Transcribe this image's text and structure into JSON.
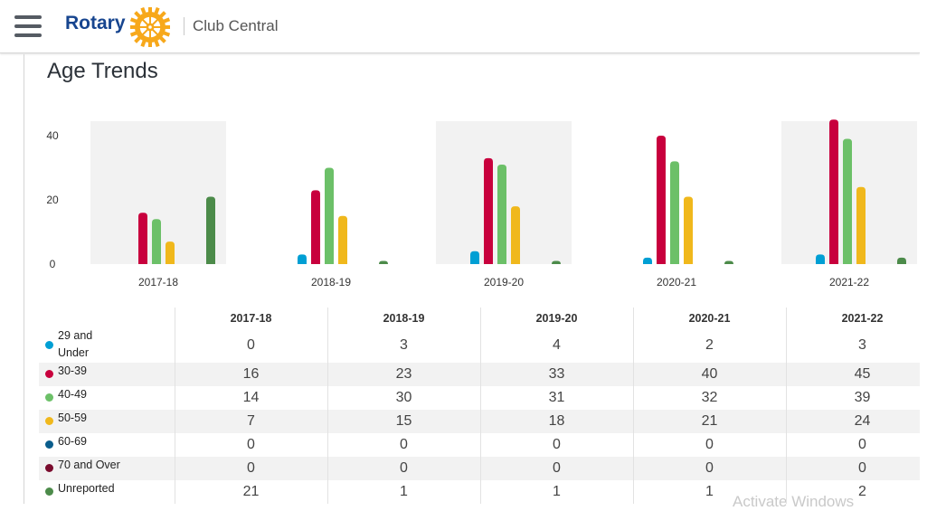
{
  "header": {
    "brand": "Rotary",
    "app_name": "Club Central",
    "menu_icon": "hamburger-menu-icon",
    "logo_icon": "rotary-wheel-icon",
    "colors": {
      "brand_blue": "#17458f",
      "wheel_gold": "#f7a81b"
    }
  },
  "page": {
    "title": "Age Trends"
  },
  "chart_data": {
    "type": "bar",
    "categories": [
      "2017-18",
      "2018-19",
      "2019-20",
      "2020-21",
      "2021-22"
    ],
    "y_ticks": [
      "0",
      "20",
      "40"
    ],
    "ylim": [
      0,
      45
    ],
    "grouping": "small multiples per year, alternating shaded panels",
    "series": [
      {
        "name": "29 and Under",
        "color": "#009fd4",
        "values": [
          0,
          3,
          4,
          2,
          3
        ]
      },
      {
        "name": "30-39",
        "color": "#c8003d",
        "values": [
          16,
          23,
          33,
          40,
          45
        ]
      },
      {
        "name": "40-49",
        "color": "#6cc068",
        "values": [
          14,
          30,
          31,
          32,
          39
        ]
      },
      {
        "name": "50-59",
        "color": "#f0b81c",
        "values": [
          7,
          15,
          18,
          21,
          24
        ]
      },
      {
        "name": "60-69",
        "color": "#0a5d8c",
        "values": [
          0,
          0,
          0,
          0,
          0
        ]
      },
      {
        "name": "70 and Over",
        "color": "#7a0c2e",
        "values": [
          0,
          0,
          0,
          0,
          0
        ]
      },
      {
        "name": "Unreported",
        "color": "#4c8b4a",
        "values": [
          21,
          1,
          1,
          1,
          2
        ]
      }
    ]
  },
  "table": {
    "headers": [
      "2017-18",
      "2018-19",
      "2019-20",
      "2020-21",
      "2021-22"
    ],
    "rows": [
      {
        "label": "29 and Under",
        "label_lines": [
          "29 and",
          "Under"
        ],
        "color": "#009fd4",
        "values": [
          "0",
          "3",
          "4",
          "2",
          "3"
        ]
      },
      {
        "label": "30-39",
        "label_lines": [
          "30-39"
        ],
        "color": "#c8003d",
        "values": [
          "16",
          "23",
          "33",
          "40",
          "45"
        ]
      },
      {
        "label": "40-49",
        "label_lines": [
          "40-49"
        ],
        "color": "#6cc068",
        "values": [
          "14",
          "30",
          "31",
          "32",
          "39"
        ]
      },
      {
        "label": "50-59",
        "label_lines": [
          "50-59"
        ],
        "color": "#f0b81c",
        "values": [
          "7",
          "15",
          "18",
          "21",
          "24"
        ]
      },
      {
        "label": "60-69",
        "label_lines": [
          "60-69"
        ],
        "color": "#0a5d8c",
        "values": [
          "0",
          "0",
          "0",
          "0",
          "0"
        ]
      },
      {
        "label": "70 and Over",
        "label_lines": [
          "70 and Over"
        ],
        "color": "#7a0c2e",
        "values": [
          "0",
          "0",
          "0",
          "0",
          "0"
        ]
      },
      {
        "label": "Unreported",
        "label_lines": [
          "Unreported"
        ],
        "color": "#4c8b4a",
        "values": [
          "21",
          "1",
          "1",
          "1",
          "2"
        ]
      }
    ]
  },
  "overlay": {
    "watermark": "Activate Windows"
  }
}
